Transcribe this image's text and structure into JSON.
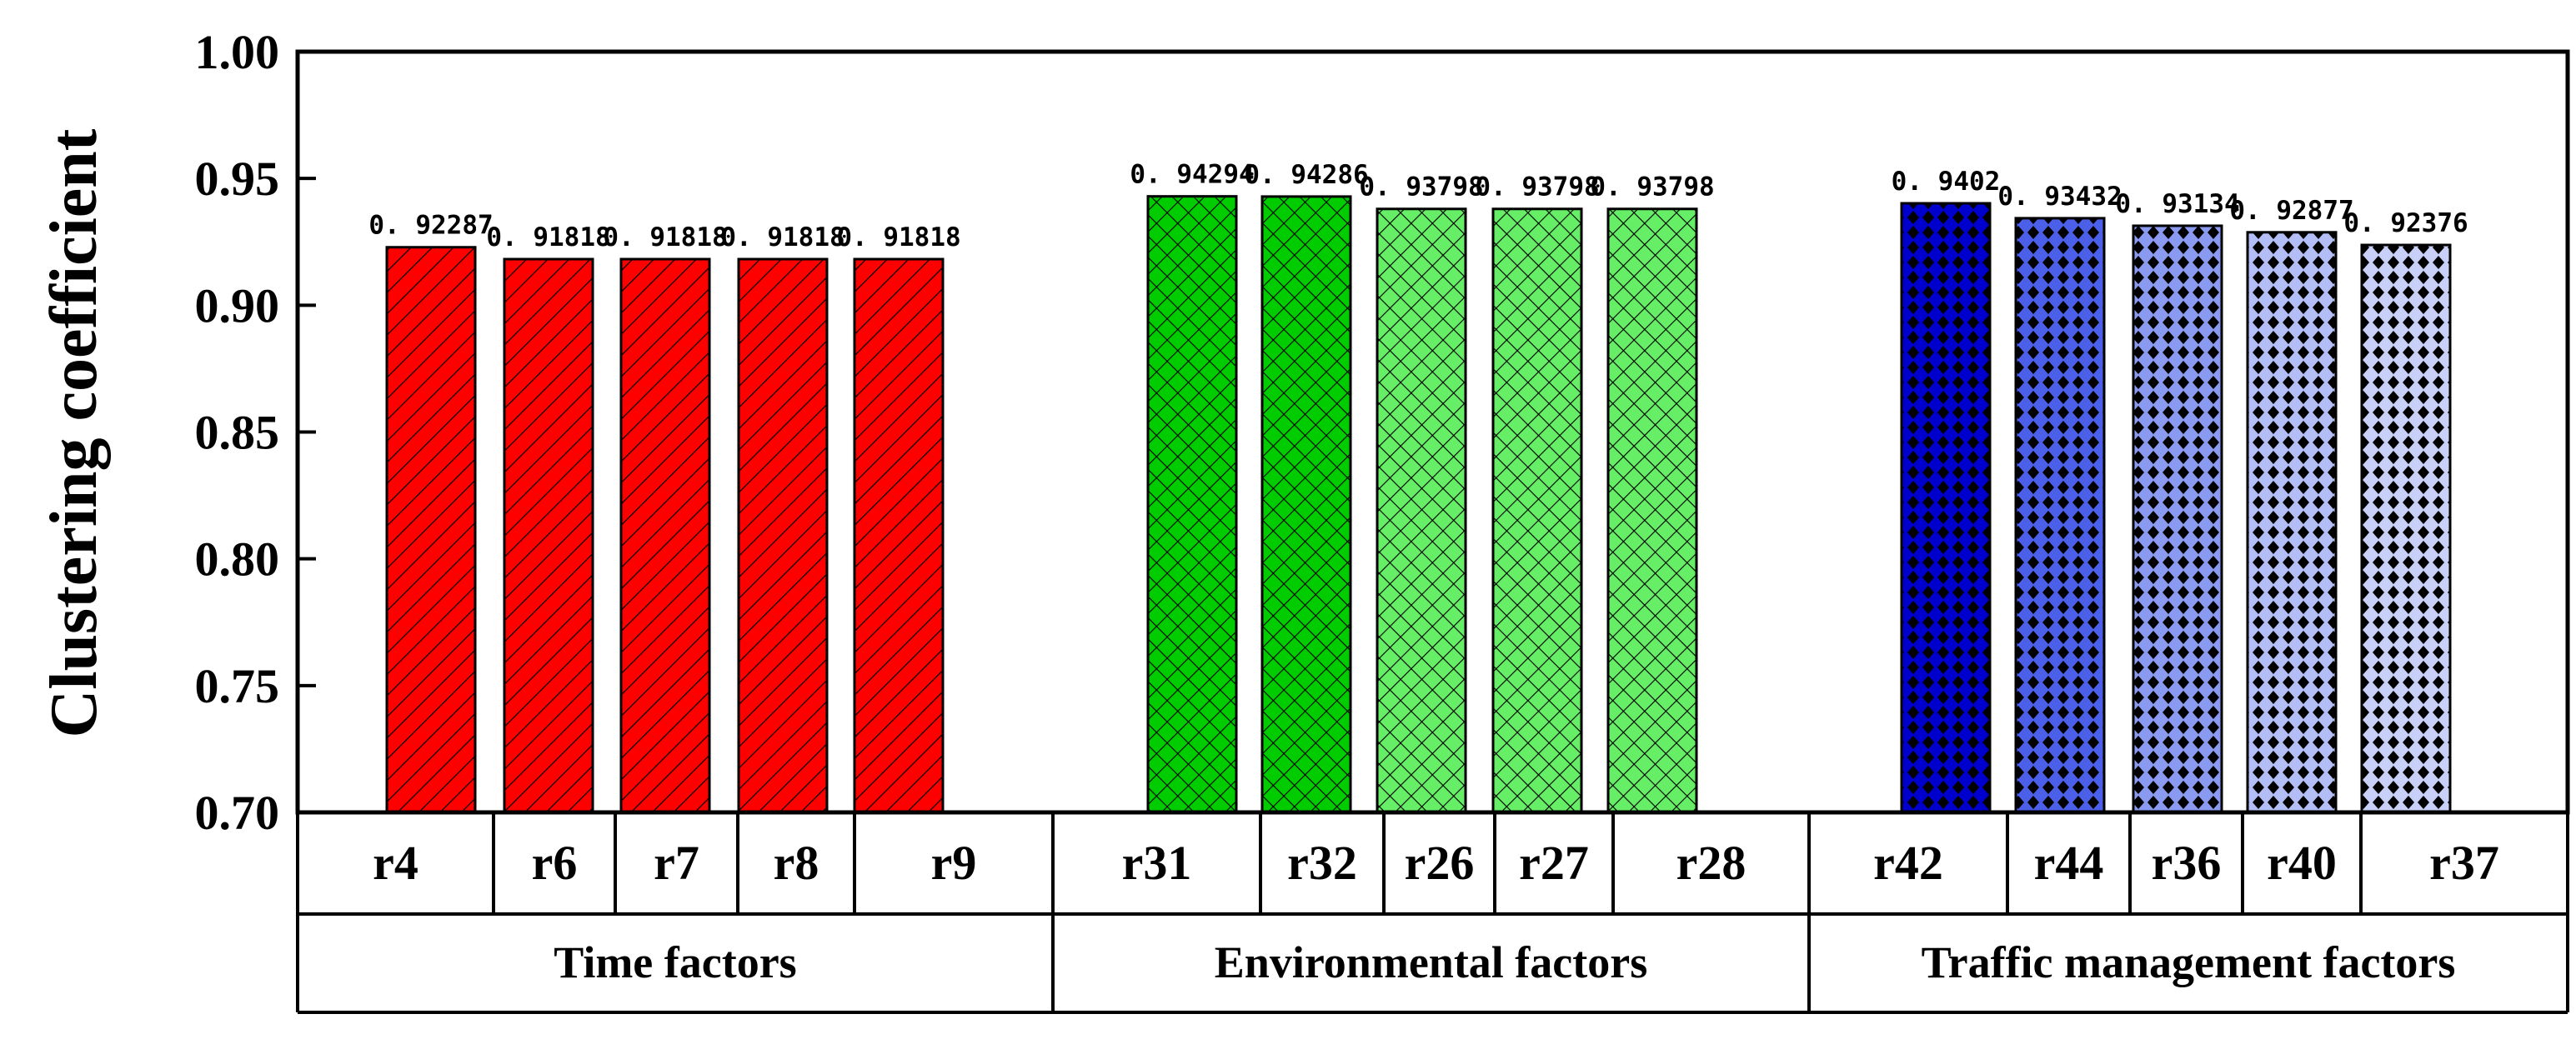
{
  "chart_data": {
    "type": "bar",
    "ylabel": "Clustering coefficient",
    "ylim": [
      0.7,
      1.0
    ],
    "yticks": [
      "0.70",
      "0.75",
      "0.80",
      "0.85",
      "0.90",
      "0.95",
      "1.00"
    ],
    "grid": false,
    "legend": "none",
    "categories": [
      "r4",
      "r6",
      "r7",
      "r8",
      "r9",
      "r31",
      "r32",
      "r26",
      "r27",
      "r28",
      "r42",
      "r44",
      "r36",
      "r40",
      "r37"
    ],
    "values": [
      0.92287,
      0.91818,
      0.91818,
      0.91818,
      0.91818,
      0.94294,
      0.94286,
      0.93798,
      0.93798,
      0.93798,
      0.9402,
      0.93432,
      0.93134,
      0.92877,
      0.92376
    ],
    "data_labels": [
      "0. 92287",
      "0. 91818",
      "0. 91818",
      "0. 91818",
      "0. 91818",
      "0. 94294",
      "0. 94286",
      "0. 93798",
      "0. 93798",
      "0. 93798",
      "0. 9402",
      "0. 93432",
      "0. 93134",
      "0. 92877",
      "0. 92376"
    ],
    "groups": [
      {
        "name": "Time factors",
        "categories": [
          "r4",
          "r6",
          "r7",
          "r8",
          "r9"
        ]
      },
      {
        "name": "Environmental factors",
        "categories": [
          "r31",
          "r32",
          "r26",
          "r27",
          "r28"
        ]
      },
      {
        "name": "Traffic management factors",
        "categories": [
          "r42",
          "r44",
          "r36",
          "r40",
          "r37"
        ]
      }
    ],
    "bar_colors": [
      "#ff0000",
      "#ff0000",
      "#ff0000",
      "#ff0000",
      "#ff0000",
      "#00cc00",
      "#00cc00",
      "#66ee66",
      "#66ee66",
      "#66ee66",
      "#0000cc",
      "#4b5fe8",
      "#8a9af0",
      "#b4bef6",
      "#c8d0f8"
    ],
    "bar_patterns": [
      "diagonal",
      "diagonal",
      "diagonal",
      "diagonal",
      "diagonal",
      "crosshatch",
      "crosshatch",
      "crosshatch",
      "crosshatch",
      "crosshatch",
      "diamond",
      "diamond",
      "diamond",
      "diamond",
      "diamond"
    ]
  }
}
